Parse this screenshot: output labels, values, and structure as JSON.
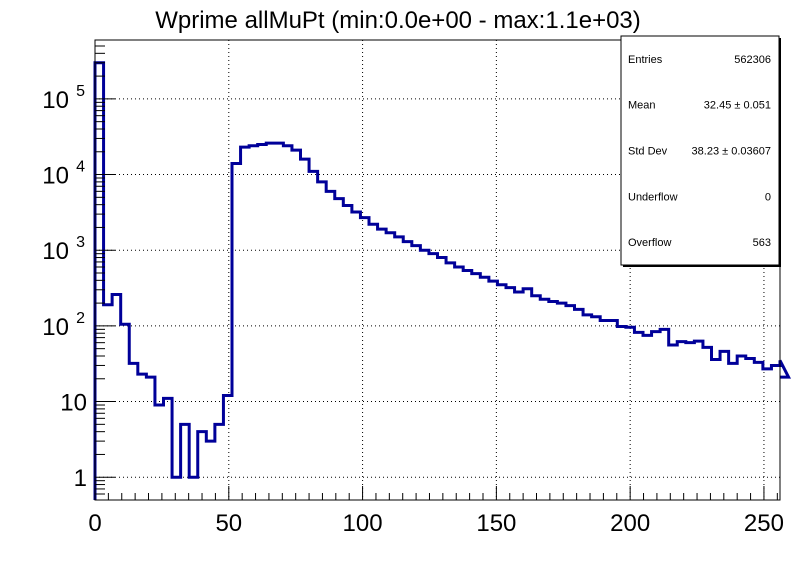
{
  "chart_data": {
    "type": "histogram",
    "title": "Wprime allMuPt (min:0.0e+00 - max:1.1e+03)",
    "xlabel": "",
    "ylabel": "",
    "xlim": [
      0,
      256
    ],
    "ylim": [
      0.5,
      600000
    ],
    "yscale": "log",
    "grid": true,
    "bin_width": 3.2,
    "x_ticks": [
      0,
      50,
      100,
      150,
      200,
      250
    ],
    "y_ticks": [
      {
        "value": 1,
        "label": "1"
      },
      {
        "value": 10,
        "label": "10"
      },
      {
        "value": 100,
        "label": "10",
        "exp": "2"
      },
      {
        "value": 1000,
        "label": "10",
        "exp": "3"
      },
      {
        "value": 10000,
        "label": "10",
        "exp": "4"
      },
      {
        "value": 100000,
        "label": "10",
        "exp": "5"
      }
    ],
    "series": [
      {
        "color": "#000099",
        "values": [
          300000,
          190,
          260,
          105,
          32,
          23,
          21,
          9,
          11,
          1,
          5,
          1,
          4,
          3,
          5,
          12,
          14000,
          23000,
          24000,
          25000,
          26000,
          26000,
          24000,
          21000,
          16000,
          11000,
          8000,
          6000,
          4800,
          3900,
          3200,
          2700,
          2200,
          1900,
          1700,
          1500,
          1300,
          1150,
          1000,
          900,
          800,
          680,
          600,
          540,
          490,
          440,
          390,
          350,
          320,
          280,
          310,
          250,
          225,
          210,
          200,
          185,
          165,
          140,
          132,
          118,
          118,
          98,
          96,
          82,
          75,
          84,
          90,
          56,
          62,
          60,
          63,
          52,
          36,
          46,
          32,
          40,
          37,
          33,
          27,
          30,
          35,
          21
        ]
      }
    ],
    "legend": {
      "position": "top-right",
      "rows": [
        {
          "label": "Entries",
          "value": "562306"
        },
        {
          "label": "Mean",
          "value": "32.45 ± 0.051"
        },
        {
          "label": "Std Dev",
          "value": "38.23 ± 0.03607"
        },
        {
          "label": "Underflow",
          "value": "0"
        },
        {
          "label": "Overflow",
          "value": "563"
        }
      ]
    }
  }
}
